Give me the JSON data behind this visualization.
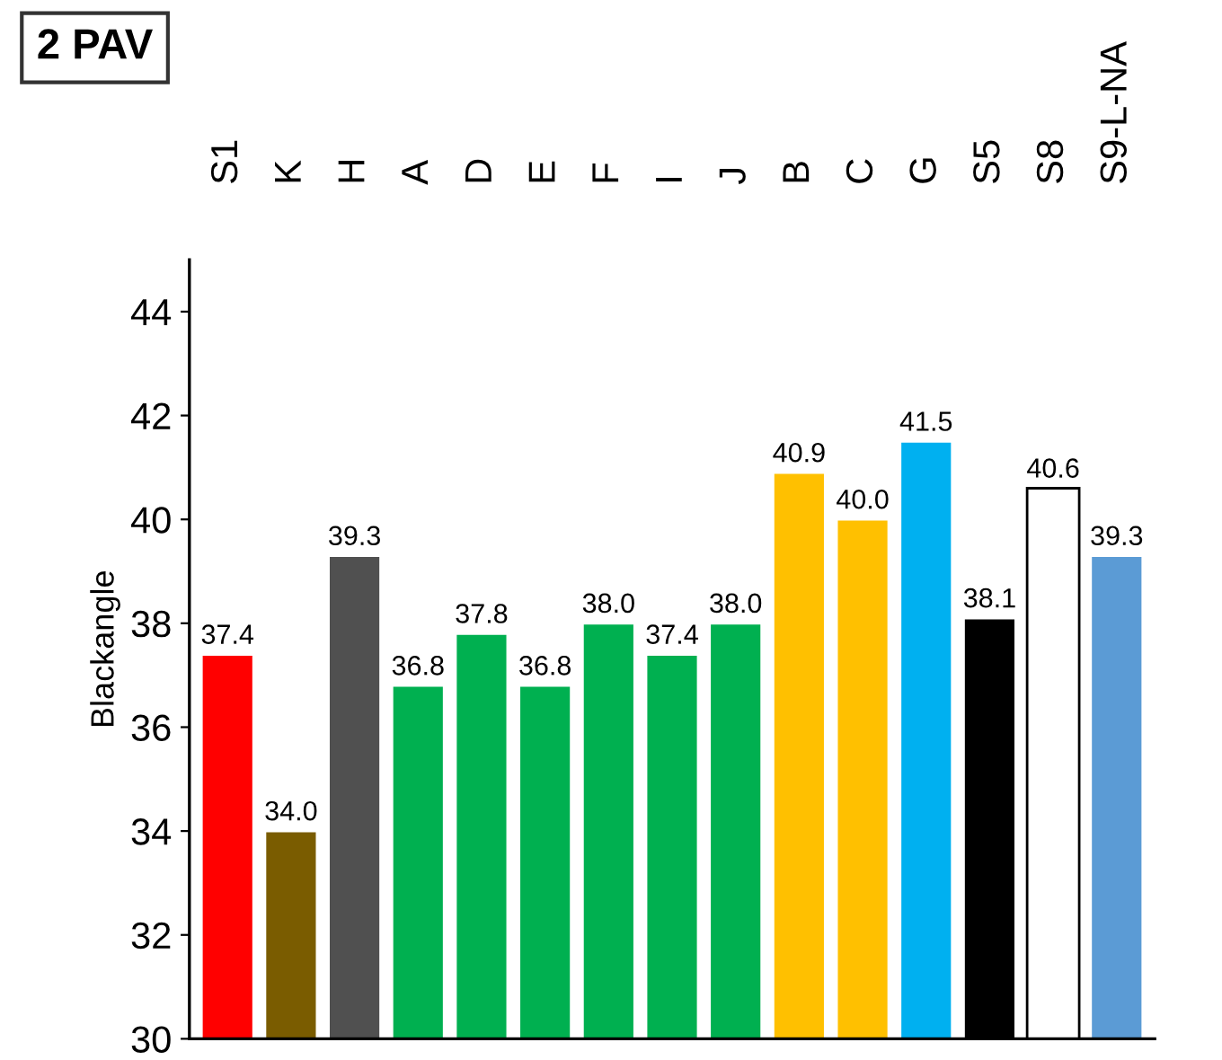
{
  "chart_data": {
    "type": "bar",
    "title": "2 PAV",
    "ylabel": "Blackangle",
    "categories": [
      "S1",
      "K",
      "H",
      "A",
      "D",
      "E",
      "F",
      "I",
      "J",
      "B",
      "C",
      "G",
      "S5",
      "S8",
      "S9-L-NA"
    ],
    "values": [
      37.4,
      34.0,
      39.3,
      36.8,
      37.8,
      36.8,
      38.0,
      37.4,
      38.0,
      40.9,
      40.0,
      41.5,
      38.1,
      40.6,
      39.3
    ],
    "colors": [
      "#ff0000",
      "#7a5c00",
      "#505050",
      "#00b050",
      "#00b050",
      "#00b050",
      "#00b050",
      "#00b050",
      "#00b050",
      "#ffc000",
      "#ffc000",
      "#00b0f0",
      "#000000",
      "#ffffff",
      "#5b9bd5"
    ],
    "value_labels": [
      "37.4",
      "34.0",
      "39.3",
      "36.8",
      "37.8",
      "36.8",
      "38.0",
      "37.4",
      "38.0",
      "40.9",
      "40.0",
      "41.5",
      "38.1",
      "40.6",
      "39.3"
    ],
    "ylim": [
      30,
      45
    ],
    "yticks": [
      30,
      32,
      34,
      36,
      38,
      40,
      42,
      44
    ],
    "grid": false,
    "legend": false
  }
}
